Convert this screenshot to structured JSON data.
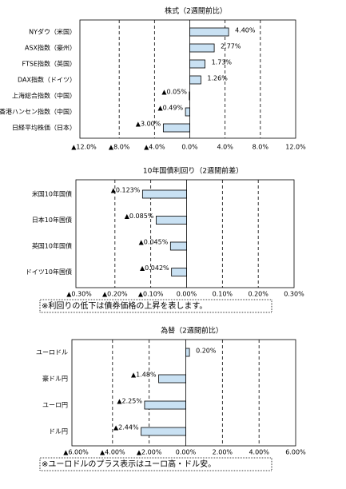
{
  "chart_data": [
    {
      "type": "bar",
      "orientation": "horizontal",
      "title": "株式（2週間前比）",
      "categories": [
        "NYダウ（米国）",
        "ASX指数（豪州）",
        "FTSE指数（英国）",
        "DAX指数（ドイツ）",
        "上海総合指数（中国）",
        "香港ハンセン指数（中国）",
        "日経平均株価（日本）"
      ],
      "values": [
        4.4,
        2.77,
        1.73,
        1.26,
        -0.05,
        -0.49,
        -3.0
      ],
      "value_labels": [
        "4.40%",
        "2.77%",
        "1.73%",
        "1.26%",
        "▲0.05%",
        "▲0.49%",
        "▲3.00%"
      ],
      "xlim": [
        -12,
        12
      ],
      "xticks": [
        {
          "value": -12,
          "label": "▲12.0%"
        },
        {
          "value": -8,
          "label": "▲8.0%"
        },
        {
          "value": -4,
          "label": "▲4.0%"
        },
        {
          "value": 0,
          "label": "0.0%"
        },
        {
          "value": 4,
          "label": "4.0%"
        },
        {
          "value": 8,
          "label": "8.0%"
        },
        {
          "value": 12,
          "label": "12.0%"
        }
      ],
      "color": "#c9e1f3",
      "negative_label_color": "#ff0000",
      "grid": true
    },
    {
      "type": "bar",
      "orientation": "horizontal",
      "title": "10年国債利回り（2週間前差）",
      "categories": [
        "米国10年国債",
        "日本10年国債",
        "英国10年国債",
        "ドイツ10年国債"
      ],
      "values": [
        -0.123,
        -0.085,
        -0.045,
        -0.042
      ],
      "value_labels": [
        "▲0.123%",
        "▲0.085%",
        "▲0.045%",
        "▲0.042%"
      ],
      "xlim": [
        -0.3,
        0.3
      ],
      "xticks": [
        {
          "value": -0.3,
          "label": "▲0.30%"
        },
        {
          "value": -0.2,
          "label": "▲0.20%"
        },
        {
          "value": -0.1,
          "label": "▲0.10%"
        },
        {
          "value": 0,
          "label": "0.00%"
        },
        {
          "value": 0.1,
          "label": "0.10%"
        },
        {
          "value": 0.2,
          "label": "0.20%"
        },
        {
          "value": 0.3,
          "label": "0.30%"
        }
      ],
      "color": "#c9e1f3",
      "negative_label_color": "#ff0000",
      "grid": true,
      "note": "※利回りの低下は債券価格の上昇を表します。"
    },
    {
      "type": "bar",
      "orientation": "horizontal",
      "title": "為替（2週間前比）",
      "categories": [
        "ユーロドル",
        "豪ドル円",
        "ユーロ円",
        "ドル円"
      ],
      "values": [
        0.2,
        -1.48,
        -2.25,
        -2.44
      ],
      "value_labels": [
        "0.20%",
        "▲1.48%",
        "▲2.25%",
        "▲2.44%"
      ],
      "xlim": [
        -6,
        6
      ],
      "xticks": [
        {
          "value": -6,
          "label": "▲6.00%"
        },
        {
          "value": -4,
          "label": "▲4.00%"
        },
        {
          "value": -2,
          "label": "▲2.00%"
        },
        {
          "value": 0,
          "label": "0.00%"
        },
        {
          "value": 2,
          "label": "2.00%"
        },
        {
          "value": 4,
          "label": "4.00%"
        },
        {
          "value": 6,
          "label": "6.00%"
        }
      ],
      "color": "#c9e1f3",
      "negative_label_color": "#ff0000",
      "grid": true,
      "note": "※ユーロドルのプラス表示はユーロ高・ドル安。"
    }
  ]
}
